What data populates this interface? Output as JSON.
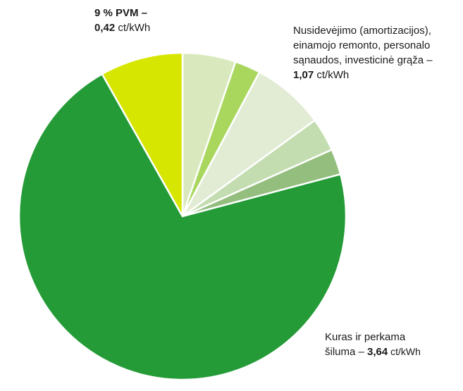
{
  "chart_data": {
    "type": "pie",
    "start_angle_deg": 0,
    "direction": "clockwise",
    "slices": [
      {
        "group": "depreciation",
        "value": 0.27,
        "color": "#d9e9bd"
      },
      {
        "group": "depreciation",
        "value": 0.13,
        "color": "#a9d75e"
      },
      {
        "group": "depreciation",
        "value": 0.37,
        "color": "#e2ecd5"
      },
      {
        "group": "depreciation",
        "value": 0.17,
        "color": "#c4ddb0"
      },
      {
        "group": "depreciation",
        "value": 0.13,
        "color": "#94be7e"
      },
      {
        "group": "fuel",
        "value": 3.64,
        "color": "#249b37"
      },
      {
        "group": "vat",
        "value": 0.42,
        "color": "#d7e600"
      }
    ],
    "labels": {
      "vat": {
        "line1_bold": "9 % PVM –",
        "value": "0,42",
        "unit": " ct/kWh"
      },
      "depreciation": {
        "line1": "Nusidevėjimo (amortizacijos),",
        "line2": "einamojo remonto, personalo",
        "line3": "sąnaudos, investicinė grąža –",
        "value": "1,07",
        "unit": " ct/kWh"
      },
      "fuel": {
        "line1": "Kuras ir perkama",
        "line2_prefix": "šiluma – ",
        "value": "3,64",
        "unit": " ct/kWh"
      }
    }
  }
}
